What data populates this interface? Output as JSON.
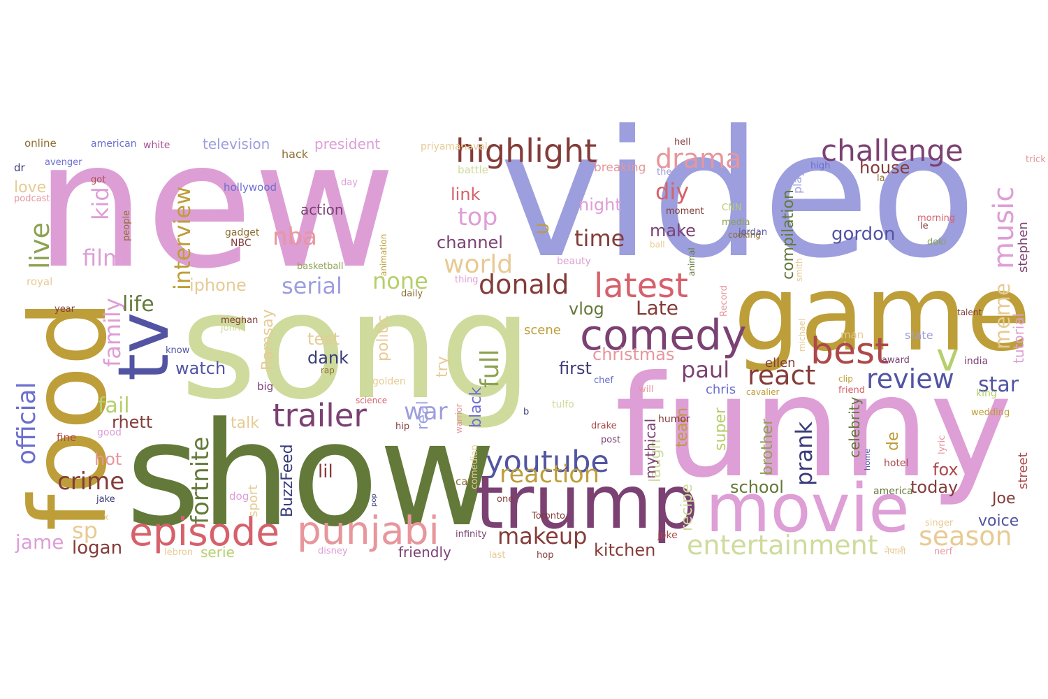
{
  "word_cloud": {
    "words": [
      {
        "text": "new",
        "color": "#dd9ed6"
      },
      {
        "text": "video",
        "color": "#9c9ede"
      },
      {
        "text": "song",
        "color": "#cedb9c"
      },
      {
        "text": "show",
        "color": "#637939"
      },
      {
        "text": "funny",
        "color": "#de9ed6"
      },
      {
        "text": "game",
        "color": "#bd9e39"
      },
      {
        "text": "food",
        "color": "#bd9e39"
      },
      {
        "text": "trump",
        "color": "#7b4173"
      },
      {
        "text": "movie",
        "color": "#de9ed6"
      },
      {
        "text": "tv",
        "color": "#5254a3"
      },
      {
        "text": "highlight",
        "color": "#843c39"
      },
      {
        "text": "episode",
        "color": "#d6616b"
      },
      {
        "text": "punjabi",
        "color": "#e7969c"
      },
      {
        "text": "comedy",
        "color": "#7b4173"
      },
      {
        "text": "best",
        "color": "#ad494a"
      },
      {
        "text": "latest",
        "color": "#d6616b"
      },
      {
        "text": "challenge",
        "color": "#7b4173"
      },
      {
        "text": "trailer",
        "color": "#7b4173"
      },
      {
        "text": "youtube",
        "color": "#5254a3"
      },
      {
        "text": "music",
        "color": "#de9ed6"
      },
      {
        "text": "drama",
        "color": "#e7969c"
      },
      {
        "text": "review",
        "color": "#5254a3"
      },
      {
        "text": "react",
        "color": "#843c39"
      },
      {
        "text": "donald",
        "color": "#843c39"
      },
      {
        "text": "world",
        "color": "#e7cb94"
      },
      {
        "text": "reaction",
        "color": "#bd9e39"
      },
      {
        "text": "makeup",
        "color": "#843c39"
      },
      {
        "text": "entertainment",
        "color": "#cedb9c"
      },
      {
        "text": "season",
        "color": "#e7cb94"
      },
      {
        "text": "crime",
        "color": "#843c39"
      },
      {
        "text": "fortnite",
        "color": "#637939"
      },
      {
        "text": "official",
        "color": "#6b6ecf"
      },
      {
        "text": "live",
        "color": "#8ca252"
      },
      {
        "text": "film",
        "color": "#de9ed6"
      },
      {
        "text": "family",
        "color": "#de9ed6"
      },
      {
        "text": "kid",
        "color": "#de9ed6"
      },
      {
        "text": "interview",
        "color": "#bd9e39"
      },
      {
        "text": "nba",
        "color": "#e7969c"
      },
      {
        "text": "top",
        "color": "#de9ed6"
      },
      {
        "text": "diy",
        "color": "#d6616b"
      },
      {
        "text": "time",
        "color": "#843c39"
      },
      {
        "text": "serial",
        "color": "#9c9ede"
      },
      {
        "text": "none",
        "color": "#b5cf6b"
      },
      {
        "text": "paul",
        "color": "#7b4173"
      },
      {
        "text": "full",
        "color": "#8ca252"
      },
      {
        "text": "war",
        "color": "#9c9ede"
      },
      {
        "text": "life",
        "color": "#637939"
      },
      {
        "text": "fail",
        "color": "#b5cf6b"
      },
      {
        "text": "v",
        "color": "#b5cf6b"
      },
      {
        "text": "star",
        "color": "#5254a3"
      },
      {
        "text": "meme",
        "color": "#e7cb94"
      },
      {
        "text": "compilation",
        "color": "#637939"
      },
      {
        "text": "prank",
        "color": "#393b79"
      },
      {
        "text": "gordon",
        "color": "#5254a3"
      },
      {
        "text": "house",
        "color": "#843c39"
      },
      {
        "text": "Late",
        "color": "#843c39"
      },
      {
        "text": "christmas",
        "color": "#e7969c"
      },
      {
        "text": "vlog",
        "color": "#637939"
      },
      {
        "text": "channel",
        "color": "#7b4173"
      },
      {
        "text": "link",
        "color": "#d6616b"
      },
      {
        "text": "night",
        "color": "#de9ed6"
      },
      {
        "text": "make",
        "color": "#7b4173"
      },
      {
        "text": "sp",
        "color": "#e7cb94"
      },
      {
        "text": "jame",
        "color": "#de9ed6"
      },
      {
        "text": "logan",
        "color": "#843c39"
      },
      {
        "text": "rhett",
        "color": "#843c39"
      },
      {
        "text": "watch",
        "color": "#5254a3"
      },
      {
        "text": "iphone",
        "color": "#e7cb94"
      },
      {
        "text": "test",
        "color": "#e7cb94"
      },
      {
        "text": "dank",
        "color": "#393b79"
      },
      {
        "text": "first",
        "color": "#393b79"
      },
      {
        "text": "lil",
        "color": "#843c39"
      },
      {
        "text": "school",
        "color": "#637939"
      },
      {
        "text": "today",
        "color": "#843c39"
      },
      {
        "text": "voice",
        "color": "#5254a3"
      },
      {
        "text": "Joe",
        "color": "#843c39"
      },
      {
        "text": "fox",
        "color": "#ad494a"
      },
      {
        "text": "kitchen",
        "color": "#843c39"
      },
      {
        "text": "hot",
        "color": "#e7969c"
      },
      {
        "text": "love",
        "color": "#e7cb94"
      },
      {
        "text": "talk",
        "color": "#e7cb94"
      },
      {
        "text": "ellen",
        "color": "#843c39"
      },
      {
        "text": "chris",
        "color": "#6b6ecf"
      },
      {
        "text": "brother",
        "color": "#8ca252"
      },
      {
        "text": "super",
        "color": "#b5cf6b"
      },
      {
        "text": "team",
        "color": "#bd9e39"
      },
      {
        "text": "laugh",
        "color": "#cedb9c"
      },
      {
        "text": "recipe",
        "color": "#cedb9c"
      },
      {
        "text": "mythical",
        "color": "#7b4173"
      },
      {
        "text": "stephen",
        "color": "#7b4173"
      },
      {
        "text": "tutorial",
        "color": "#de9ed6"
      },
      {
        "text": "street",
        "color": "#ad494a"
      },
      {
        "text": "politic",
        "color": "#e7cb94"
      },
      {
        "text": "Ramsay",
        "color": "#e7cb94"
      },
      {
        "text": "real",
        "color": "#9c9ede"
      },
      {
        "text": "try",
        "color": "#e7cb94"
      },
      {
        "text": "black",
        "color": "#6b6ecf"
      },
      {
        "text": "BuzzFeed",
        "color": "#393b79"
      },
      {
        "text": "sport",
        "color": "#e7cb94"
      },
      {
        "text": "U",
        "color": "#bd9e39"
      },
      {
        "text": "action",
        "color": "#7b4173"
      },
      {
        "text": "de",
        "color": "#bd9e39"
      },
      {
        "text": "celebrity",
        "color": "#637939"
      },
      {
        "text": "friendly",
        "color": "#7b4173"
      },
      {
        "text": "serie",
        "color": "#b5cf6b"
      },
      {
        "text": "television",
        "color": "#9c9ede"
      },
      {
        "text": "president",
        "color": "#de9ed6"
      },
      {
        "text": "online",
        "color": "#8c6d31"
      },
      {
        "text": "american",
        "color": "#6b6ecf"
      },
      {
        "text": "white",
        "color": "#a55194"
      },
      {
        "text": "priyamanaval",
        "color": "#e7cb94"
      },
      {
        "text": "hell",
        "color": "#843c39"
      },
      {
        "text": "hack",
        "color": "#8c6d31"
      },
      {
        "text": "battle",
        "color": "#cedb9c"
      },
      {
        "text": "breaking",
        "color": "#e7969c"
      },
      {
        "text": "theory",
        "color": "#9c9ede"
      },
      {
        "text": "high",
        "color": "#6b6ecf"
      },
      {
        "text": "dr",
        "color": "#393b79"
      },
      {
        "text": "avenger",
        "color": "#6b6ecf"
      },
      {
        "text": "got",
        "color": "#ad494a"
      },
      {
        "text": "day",
        "color": "#de9ed6"
      },
      {
        "text": "podcast",
        "color": "#e7969c"
      },
      {
        "text": "hollywood",
        "color": "#6b6ecf"
      },
      {
        "text": "people",
        "color": "#8c6d31"
      },
      {
        "text": "gadget",
        "color": "#8c6d31"
      },
      {
        "text": "NBC",
        "color": "#843c39"
      },
      {
        "text": "basketball",
        "color": "#8ca252"
      },
      {
        "text": "royal",
        "color": "#e7cb94"
      },
      {
        "text": "animation",
        "color": "#bd9e39"
      },
      {
        "text": "daily",
        "color": "#8c6d31"
      },
      {
        "text": "thing",
        "color": "#de9ed6"
      },
      {
        "text": "year",
        "color": "#843c39"
      },
      {
        "text": "meghan",
        "color": "#843c39"
      },
      {
        "text": "john",
        "color": "#cedb9c"
      },
      {
        "text": "know",
        "color": "#5254a3"
      },
      {
        "text": "rap",
        "color": "#8c6d31"
      },
      {
        "text": "big",
        "color": "#7b4173"
      },
      {
        "text": "golden",
        "color": "#e7cb94"
      },
      {
        "text": "science",
        "color": "#d6616b"
      },
      {
        "text": "hip",
        "color": "#843c39"
      },
      {
        "text": "good",
        "color": "#de9ed6"
      },
      {
        "text": "fine",
        "color": "#ad494a"
      },
      {
        "text": "warrior",
        "color": "#e7969c"
      },
      {
        "text": "comedian",
        "color": "#e7cb94"
      },
      {
        "text": "pop",
        "color": "#393b79"
      },
      {
        "text": "jake",
        "color": "#393b79"
      },
      {
        "text": "x",
        "color": "#e7cb94"
      },
      {
        "text": "dog",
        "color": "#de9ed6"
      },
      {
        "text": "cat",
        "color": "#8c6d31"
      },
      {
        "text": "one",
        "color": "#843c39"
      },
      {
        "text": "Toronto",
        "color": "#843c39"
      },
      {
        "text": "infinity",
        "color": "#7b4173"
      },
      {
        "text": "disney",
        "color": "#de9ed6"
      },
      {
        "text": "lebron",
        "color": "#e7cb94"
      },
      {
        "text": "last",
        "color": "#e7cb94"
      },
      {
        "text": "hop",
        "color": "#843c39"
      },
      {
        "text": "joke",
        "color": "#ad494a"
      },
      {
        "text": "b",
        "color": "#393b79"
      },
      {
        "text": "tulfo",
        "color": "#cedb9c"
      },
      {
        "text": "scene",
        "color": "#bd9e39"
      },
      {
        "text": "drake",
        "color": "#ad494a"
      },
      {
        "text": "post",
        "color": "#7b4173"
      },
      {
        "text": "humor",
        "color": "#843c39"
      },
      {
        "text": "will",
        "color": "#e7969c"
      },
      {
        "text": "chef",
        "color": "#6b6ecf"
      },
      {
        "text": "michael",
        "color": "#e7cb94"
      },
      {
        "text": "Record",
        "color": "#e7969c"
      },
      {
        "text": "animal",
        "color": "#637939"
      },
      {
        "text": "ball",
        "color": "#e7cb94"
      },
      {
        "text": "beauty",
        "color": "#de9ed6"
      },
      {
        "text": "moment",
        "color": "#843c39"
      },
      {
        "text": "CNN",
        "color": "#b5cf6b"
      },
      {
        "text": "jordan",
        "color": "#5254a3"
      },
      {
        "text": "media",
        "color": "#8ca252"
      },
      {
        "text": "cooking",
        "color": "#8c6d31"
      },
      {
        "text": "smith",
        "color": "#e7cb94"
      },
      {
        "text": "play",
        "color": "#9c9ede"
      },
      {
        "text": "la",
        "color": "#8c6d31"
      },
      {
        "text": "trick",
        "color": "#e7969c"
      },
      {
        "text": "morning",
        "color": "#d6616b"
      },
      {
        "text": "le",
        "color": "#843c39"
      },
      {
        "text": "doki",
        "color": "#8ca252"
      },
      {
        "text": "talent",
        "color": "#843c39"
      },
      {
        "text": "man",
        "color": "#e7cb94"
      },
      {
        "text": "state",
        "color": "#9c9ede"
      },
      {
        "text": "award",
        "color": "#7b4173"
      },
      {
        "text": "india",
        "color": "#7b4173"
      },
      {
        "text": "clip",
        "color": "#bd9e39"
      },
      {
        "text": "friend",
        "color": "#d6616b"
      },
      {
        "text": "cavalier",
        "color": "#bd9e39"
      },
      {
        "text": "king",
        "color": "#b5cf6b"
      },
      {
        "text": "wedding",
        "color": "#bd9e39"
      },
      {
        "text": "lyric",
        "color": "#e7969c"
      },
      {
        "text": "hotel",
        "color": "#ad494a"
      },
      {
        "text": "home",
        "color": "#5254a3"
      },
      {
        "text": "america",
        "color": "#637939"
      },
      {
        "text": "singer",
        "color": "#e7cb94"
      },
      {
        "text": "नेपाली",
        "color": "#e7cb94"
      },
      {
        "text": "nerf",
        "color": "#e7969c"
      }
    ]
  }
}
